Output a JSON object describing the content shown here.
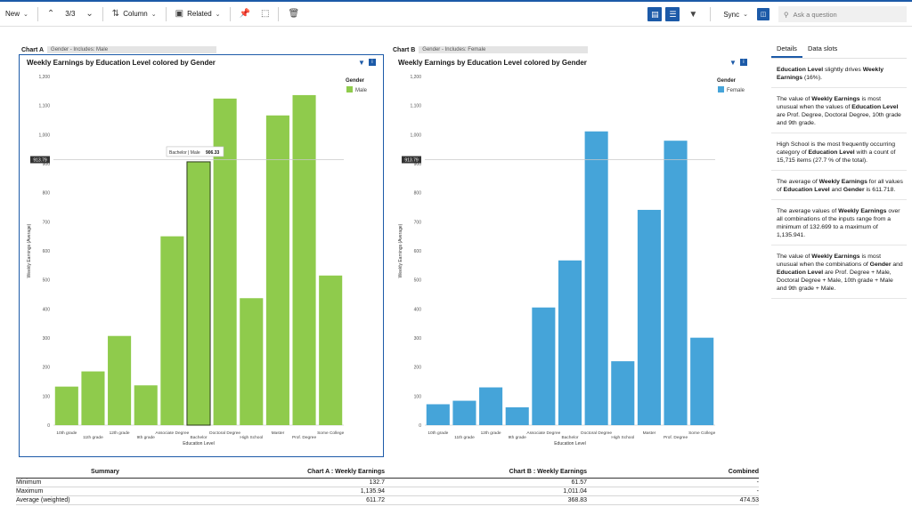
{
  "toolbar": {
    "new_label": "New",
    "page_counter": "3/3",
    "column_label": "Column",
    "related_label": "Related",
    "sync_label": "Sync",
    "ask_placeholder": "Ask a question"
  },
  "chart_a": {
    "label": "Chart A",
    "filter": "Gender - Includes: Male",
    "title": "Weekly Earnings by Education Level colored by Gender",
    "legend_title": "Gender",
    "legend_item": "Male",
    "color": "#8fcb4c",
    "reference_label": "913.79",
    "tooltip_label": "Bachelor | Male",
    "tooltip_value": "906.33"
  },
  "chart_b": {
    "label": "Chart B",
    "filter": "Gender - Includes: Female",
    "title": "Weekly Earnings by Education Level colored by Gender",
    "legend_title": "Gender",
    "legend_item": "Female",
    "color": "#45a4d9",
    "reference_label": "913.79"
  },
  "chart_data": [
    {
      "type": "bar",
      "title": "Weekly Earnings by Education Level colored by Gender",
      "xlabel": "Education Level",
      "ylabel": "Weekly Earnings (Average)",
      "ylim": [
        0,
        1200
      ],
      "yticks": [
        "0",
        "100",
        "200",
        "300",
        "400",
        "500",
        "600",
        "700",
        "800",
        "900",
        "1,000",
        "1,100",
        "1,200"
      ],
      "categories": [
        "10th grade",
        "11th grade",
        "12th grade",
        "9th grade",
        "Associate Degree",
        "Bachelor",
        "Doctoral Degree",
        "High School",
        "Master",
        "Prof. Degree",
        "Some College"
      ],
      "series": [
        {
          "name": "Male",
          "values": [
            132.7,
            185,
            307,
            137,
            650,
            906.33,
            1124,
            437,
            1066,
            1135.94,
            515
          ]
        }
      ],
      "reference_line": 913.79
    },
    {
      "type": "bar",
      "title": "Weekly Earnings by Education Level colored by Gender",
      "xlabel": "Education Level",
      "ylabel": "Weekly Earnings (Average)",
      "ylim": [
        0,
        1200
      ],
      "yticks": [
        "0",
        "100",
        "200",
        "300",
        "400",
        "500",
        "600",
        "700",
        "800",
        "900",
        "1,000",
        "1,100",
        "1,200"
      ],
      "categories": [
        "10th grade",
        "11th grade",
        "12th grade",
        "9th grade",
        "Associate Degree",
        "Bachelor",
        "Doctoral Degree",
        "High School",
        "Master",
        "Prof. Degree",
        "Some College"
      ],
      "series": [
        {
          "name": "Female",
          "values": [
            72,
            84,
            130,
            61.57,
            405,
            567,
            1011.04,
            220,
            741,
            979,
            301
          ]
        }
      ],
      "reference_line": 913.79
    }
  ],
  "side": {
    "tab_details": "Details",
    "tab_slots": "Data slots",
    "insights": [
      [
        {
          "b": "Education Level"
        },
        {
          "t": " slightly drives "
        },
        {
          "b": "Weekly Earnings"
        },
        {
          "t": " (16%)."
        }
      ],
      [
        {
          "t": "The value of "
        },
        {
          "b": "Weekly Earnings"
        },
        {
          "t": " is most unusual when the values of "
        },
        {
          "b": "Education Level"
        },
        {
          "t": " are Prof. Degree, Doctoral Degree, 10th grade and 9th grade."
        }
      ],
      [
        {
          "t": "High School is the most frequently occurring category of "
        },
        {
          "b": "Education Level"
        },
        {
          "t": " with a count of 15,715 items (27.7 % of the total)."
        }
      ],
      [
        {
          "t": "The average of "
        },
        {
          "b": "Weekly Earnings"
        },
        {
          "t": " for all values of "
        },
        {
          "b": "Education Level"
        },
        {
          "t": " and "
        },
        {
          "b": "Gender"
        },
        {
          "t": " is 611.718."
        }
      ],
      [
        {
          "t": "The average values of "
        },
        {
          "b": "Weekly Earnings"
        },
        {
          "t": " over all combinations of the inputs range from a minimum of 132.699 to a maximum of 1,135.941."
        }
      ],
      [
        {
          "t": "The value of "
        },
        {
          "b": "Weekly Earnings"
        },
        {
          "t": " is most unusual when the combinations of "
        },
        {
          "b": "Gender"
        },
        {
          "t": " and "
        },
        {
          "b": "Education Level"
        },
        {
          "t": " are Prof. Degree + Male, Doctoral Degree + Male, 10th grade + Male and 9th grade + Male."
        }
      ]
    ]
  },
  "summary": {
    "headers": [
      "Summary",
      "Chart A : Weekly Earnings",
      "Chart B : Weekly Earnings",
      "Combined"
    ],
    "rows": [
      [
        "Minimum",
        "132.7",
        "61.57",
        "-"
      ],
      [
        "Maximum",
        "1,135.94",
        "1,011.04",
        "-"
      ],
      [
        "Average (weighted)",
        "611.72",
        "368.83",
        "474.53"
      ]
    ]
  }
}
